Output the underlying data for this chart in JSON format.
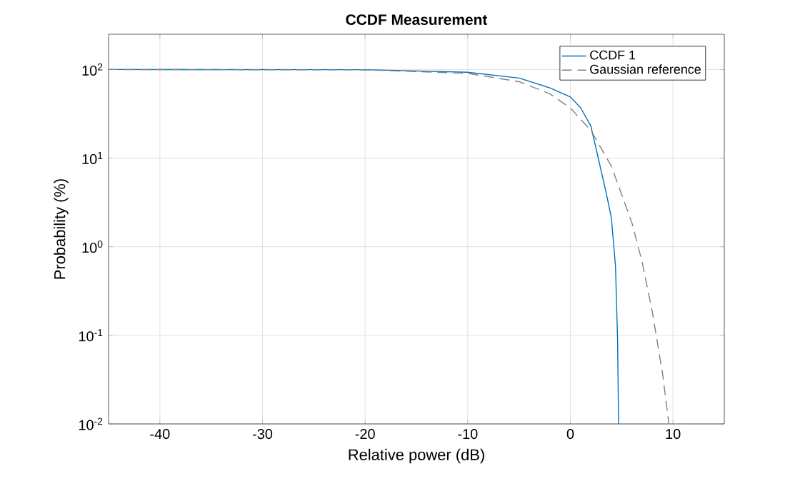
{
  "chart_data": {
    "type": "line",
    "title": "CCDF Measurement",
    "xlabel": "Relative power (dB)",
    "ylabel": "Probability (%)",
    "log": "y",
    "grid": true,
    "legend": "top right",
    "marker": "none",
    "xlim": [
      -45,
      15
    ],
    "xticks": [
      -40,
      -30,
      -20,
      -10,
      0,
      10
    ],
    "ylim": [
      0.01,
      250
    ],
    "yticks": [
      {
        "value": 0.01,
        "label": "10$^{-2}$"
      },
      {
        "value": 0.1,
        "label": "10$^{-1}$"
      },
      {
        "value": 1,
        "label": "10$^{0}$"
      },
      {
        "value": 10,
        "label": "10$^{1}$"
      },
      {
        "value": 100,
        "label": "10$^{2}$"
      }
    ],
    "series": [
      {
        "name": "CCDF 1",
        "color": "#0072bd",
        "line_style": "solid",
        "x": [
          -45,
          -20,
          -10,
          -5,
          -2,
          0,
          1,
          2,
          3,
          3.5,
          4,
          4.4,
          4.6,
          4.7
        ],
        "values": [
          100,
          99.5,
          93,
          80,
          62,
          49,
          37,
          23,
          7.2,
          4,
          2.1,
          0.6,
          0.09,
          0.01
        ]
      },
      {
        "name": "Gaussian reference",
        "color": "#808080",
        "line_style": "dashed",
        "x": [
          -45,
          -20,
          -10,
          -5,
          -2,
          0,
          2,
          4,
          6,
          7,
          8,
          9,
          9.6
        ],
        "values": [
          100,
          99,
          90.5,
          72.9,
          53.3,
          36.8,
          20.5,
          8.1,
          1.86,
          0.67,
          0.18,
          0.036,
          0.01
        ]
      }
    ]
  }
}
